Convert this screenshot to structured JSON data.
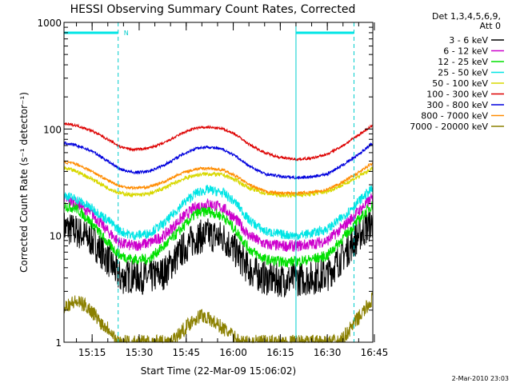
{
  "chart_data": {
    "type": "line",
    "title": "HESSI Observing Summary Count Rates, Corrected",
    "xlabel": "Start Time (22-Mar-09 15:06:02)",
    "ylabel": "Corrected Count Rate (s⁻¹ detector⁻¹)",
    "y_scale": "log",
    "ylim": [
      1,
      1000
    ],
    "y_ticks": [
      {
        "value": 1,
        "label": "1"
      },
      {
        "value": 10,
        "label": "10"
      },
      {
        "value": 100,
        "label": "100"
      },
      {
        "value": 1000,
        "label": "1000"
      }
    ],
    "x_ticks": [
      "15:15",
      "15:30",
      "15:45",
      "16:00",
      "16:15",
      "16:30",
      "16:45"
    ],
    "x_range_min": [
      6.03,
      104.5
    ],
    "legend_header": [
      "Det 1,3,4,5,6,9,",
      "Att 0"
    ],
    "legend_position": "right",
    "night_bars": [
      {
        "from_min": 6.03,
        "to_min": 23.3,
        "label": "N"
      },
      {
        "from_min": 80.0,
        "to_min": 98.5,
        "label": ""
      }
    ],
    "saa_markers_min": [
      23.3,
      98.5
    ],
    "eclipse_lines_min": [
      6.03,
      80.0
    ],
    "series": [
      {
        "name": "3 - 6 keV",
        "color": "#000000",
        "points": [
          [
            6,
            12
          ],
          [
            10,
            11
          ],
          [
            15,
            9
          ],
          [
            20,
            6
          ],
          [
            24,
            4
          ],
          [
            28,
            4.2
          ],
          [
            33,
            4
          ],
          [
            38,
            4.5
          ],
          [
            44,
            7.5
          ],
          [
            48,
            9.5
          ],
          [
            52,
            10.2
          ],
          [
            57,
            9.5
          ],
          [
            61,
            7
          ],
          [
            65,
            4.8
          ],
          [
            70,
            4
          ],
          [
            75,
            3.8
          ],
          [
            80,
            3.9
          ],
          [
            85,
            4
          ],
          [
            90,
            4.3
          ],
          [
            95,
            6.5
          ],
          [
            100,
            10
          ],
          [
            104,
            13
          ]
        ]
      },
      {
        "name": "6 - 12 keV",
        "color": "#cc00cc",
        "points": [
          [
            6,
            22
          ],
          [
            10,
            20
          ],
          [
            15,
            16
          ],
          [
            20,
            11
          ],
          [
            24,
            8.5
          ],
          [
            28,
            8
          ],
          [
            33,
            8.5
          ],
          [
            38,
            10
          ],
          [
            44,
            15
          ],
          [
            48,
            18.5
          ],
          [
            52,
            20
          ],
          [
            57,
            18
          ],
          [
            61,
            14
          ],
          [
            65,
            10
          ],
          [
            70,
            8.3
          ],
          [
            75,
            8
          ],
          [
            80,
            8
          ],
          [
            85,
            8.3
          ],
          [
            90,
            9
          ],
          [
            95,
            12
          ],
          [
            100,
            17
          ],
          [
            104,
            22
          ]
        ]
      },
      {
        "name": "12 - 25 keV",
        "color": "#00e000",
        "points": [
          [
            6,
            19
          ],
          [
            10,
            18
          ],
          [
            15,
            13
          ],
          [
            20,
            8.5
          ],
          [
            24,
            6.5
          ],
          [
            28,
            6
          ],
          [
            33,
            6
          ],
          [
            38,
            8
          ],
          [
            44,
            12
          ],
          [
            48,
            16
          ],
          [
            52,
            17
          ],
          [
            57,
            15
          ],
          [
            61,
            11
          ],
          [
            65,
            7.5
          ],
          [
            70,
            6
          ],
          [
            75,
            5.7
          ],
          [
            80,
            5.7
          ],
          [
            85,
            6
          ],
          [
            90,
            6.5
          ],
          [
            95,
            9.5
          ],
          [
            100,
            14
          ],
          [
            104,
            19
          ]
        ]
      },
      {
        "name": "25 - 50 keV",
        "color": "#00e5e5",
        "points": [
          [
            6,
            24
          ],
          [
            10,
            22
          ],
          [
            15,
            18
          ],
          [
            20,
            14
          ],
          [
            24,
            11
          ],
          [
            28,
            10
          ],
          [
            33,
            10.5
          ],
          [
            38,
            13
          ],
          [
            44,
            20
          ],
          [
            48,
            25
          ],
          [
            52,
            27
          ],
          [
            57,
            25
          ],
          [
            61,
            20
          ],
          [
            65,
            14
          ],
          [
            70,
            11
          ],
          [
            75,
            10.3
          ],
          [
            80,
            10
          ],
          [
            85,
            10.5
          ],
          [
            90,
            11.5
          ],
          [
            95,
            15
          ],
          [
            100,
            21
          ],
          [
            104,
            27
          ]
        ]
      },
      {
        "name": "50 - 100 keV",
        "color": "#d8d800",
        "points": [
          [
            6,
            43
          ],
          [
            10,
            40
          ],
          [
            15,
            34
          ],
          [
            20,
            28
          ],
          [
            24,
            25
          ],
          [
            28,
            24
          ],
          [
            33,
            24.5
          ],
          [
            38,
            28
          ],
          [
            44,
            34
          ],
          [
            48,
            37
          ],
          [
            52,
            38
          ],
          [
            57,
            37
          ],
          [
            61,
            33
          ],
          [
            65,
            28
          ],
          [
            70,
            25
          ],
          [
            75,
            24
          ],
          [
            80,
            24
          ],
          [
            85,
            24.5
          ],
          [
            90,
            26
          ],
          [
            95,
            30
          ],
          [
            100,
            36
          ],
          [
            104,
            42
          ]
        ]
      },
      {
        "name": "100 - 300 keV",
        "color": "#dd0000",
        "points": [
          [
            6,
            112
          ],
          [
            10,
            108
          ],
          [
            15,
            96
          ],
          [
            20,
            80
          ],
          [
            24,
            68
          ],
          [
            28,
            64
          ],
          [
            33,
            66
          ],
          [
            38,
            74
          ],
          [
            44,
            92
          ],
          [
            48,
            102
          ],
          [
            52,
            104
          ],
          [
            57,
            100
          ],
          [
            61,
            88
          ],
          [
            65,
            72
          ],
          [
            70,
            60
          ],
          [
            75,
            54
          ],
          [
            80,
            52
          ],
          [
            85,
            53
          ],
          [
            90,
            58
          ],
          [
            95,
            70
          ],
          [
            100,
            88
          ],
          [
            104,
            106
          ]
        ]
      },
      {
        "name": "300 - 800 keV",
        "color": "#0000dd",
        "points": [
          [
            6,
            74
          ],
          [
            10,
            70
          ],
          [
            15,
            62
          ],
          [
            20,
            50
          ],
          [
            24,
            42
          ],
          [
            28,
            39
          ],
          [
            33,
            40
          ],
          [
            38,
            46
          ],
          [
            44,
            58
          ],
          [
            48,
            66
          ],
          [
            52,
            68
          ],
          [
            57,
            64
          ],
          [
            61,
            55
          ],
          [
            65,
            45
          ],
          [
            70,
            38
          ],
          [
            75,
            36
          ],
          [
            80,
            35
          ],
          [
            85,
            35.5
          ],
          [
            90,
            38
          ],
          [
            95,
            46
          ],
          [
            100,
            58
          ],
          [
            104,
            72
          ]
        ]
      },
      {
        "name": "800 - 7000 keV",
        "color": "#ff8c00",
        "points": [
          [
            6,
            49
          ],
          [
            10,
            47
          ],
          [
            15,
            40
          ],
          [
            20,
            33
          ],
          [
            24,
            29
          ],
          [
            28,
            28
          ],
          [
            33,
            28.5
          ],
          [
            38,
            32
          ],
          [
            44,
            39
          ],
          [
            48,
            42
          ],
          [
            52,
            43
          ],
          [
            57,
            41
          ],
          [
            61,
            36
          ],
          [
            65,
            30
          ],
          [
            70,
            26
          ],
          [
            75,
            25
          ],
          [
            80,
            25
          ],
          [
            85,
            25.5
          ],
          [
            90,
            27
          ],
          [
            95,
            32
          ],
          [
            100,
            39
          ],
          [
            104,
            47
          ]
        ]
      },
      {
        "name": "7000 - 20000 keV",
        "color": "#8b8000",
        "points": [
          [
            6,
            2.2
          ],
          [
            10,
            2.4
          ],
          [
            13,
            2.2
          ],
          [
            16,
            1.8
          ],
          [
            18,
            1.5
          ],
          [
            21,
            1.3
          ],
          [
            23,
            1.0
          ],
          [
            40,
            1.0
          ],
          [
            44,
            1.3
          ],
          [
            47,
            1.6
          ],
          [
            50,
            1.8
          ],
          [
            53,
            1.6
          ],
          [
            56,
            1.4
          ],
          [
            59,
            1.2
          ],
          [
            62,
            1.0
          ],
          [
            94,
            1.0
          ],
          [
            97,
            1.3
          ],
          [
            100,
            1.7
          ],
          [
            103,
            2.2
          ],
          [
            104.5,
            2.6
          ]
        ]
      }
    ]
  },
  "footer_stamp": "2-Mar-2010 23:03"
}
